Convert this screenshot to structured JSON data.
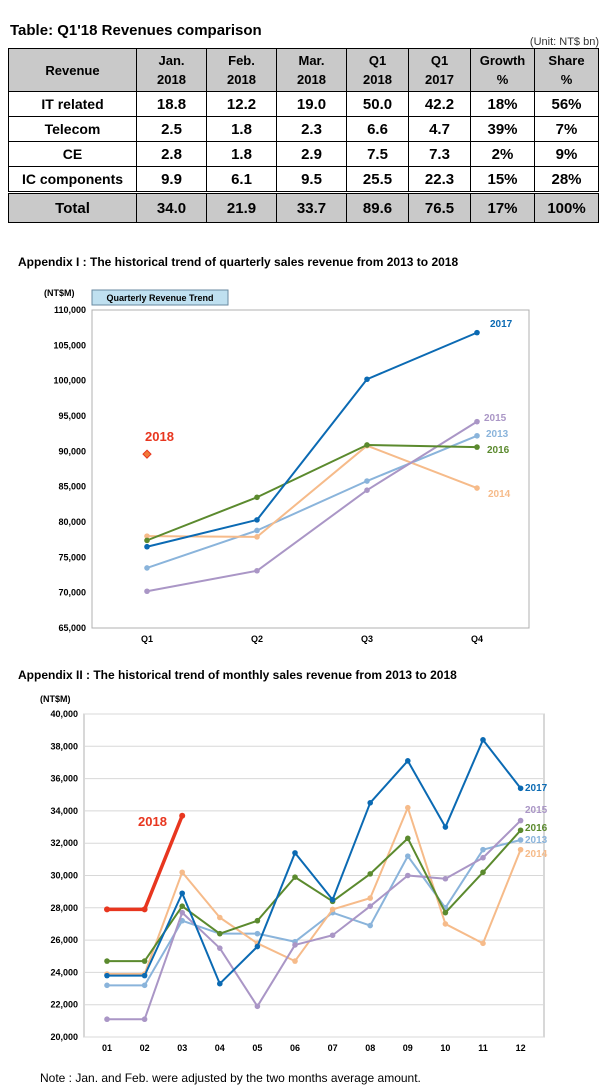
{
  "table": {
    "title": "Table: Q1'18 Revenues comparison",
    "unit": "(Unit: NT$ bn)",
    "headers": [
      [
        "Revenue",
        ""
      ],
      [
        "Jan.",
        "2018"
      ],
      [
        "Feb.",
        "2018"
      ],
      [
        "Mar.",
        "2018"
      ],
      [
        "Q1",
        "2018"
      ],
      [
        "Q1",
        "2017"
      ],
      [
        "Growth",
        "%"
      ],
      [
        "Share",
        "%"
      ]
    ],
    "rows": [
      {
        "label": "IT related",
        "cells": [
          "18.8",
          "12.2",
          "19.0",
          "50.0",
          "42.2",
          "18%",
          "56%"
        ]
      },
      {
        "label": "Telecom",
        "cells": [
          "2.5",
          "1.8",
          "2.3",
          "6.6",
          "4.7",
          "39%",
          "7%"
        ]
      },
      {
        "label": "CE",
        "cells": [
          "2.8",
          "1.8",
          "2.9",
          "7.5",
          "7.3",
          "2%",
          "9%"
        ]
      },
      {
        "label": "IC components",
        "cells": [
          "9.9",
          "6.1",
          "9.5",
          "25.5",
          "22.3",
          "15%",
          "28%"
        ]
      }
    ],
    "total": {
      "label": "Total",
      "cells": [
        "34.0",
        "21.9",
        "33.7",
        "89.6",
        "76.5",
        "17%",
        "100%"
      ]
    }
  },
  "appendix1": {
    "title": "Appendix I : The historical trend of quarterly sales revenue from 2013 to 2018"
  },
  "appendix2": {
    "title": "Appendix II : The historical trend of monthly sales revenue from 2013 to 2018"
  },
  "note": "Note : Jan. and Feb. were adjusted by the two months average amount.",
  "chart_data": [
    {
      "type": "line",
      "title": "Quarterly Revenue Trend",
      "ylabel": "(NT$M)",
      "categories": [
        "Q1",
        "Q2",
        "Q3",
        "Q4"
      ],
      "ylim": [
        65000,
        110000
      ],
      "yticks": [
        "65,000",
        "70,000",
        "75,000",
        "80,000",
        "85,000",
        "90,000",
        "95,000",
        "100,000",
        "105,000",
        "110,000"
      ],
      "legend": "inline-right",
      "series": [
        {
          "name": "2013",
          "color": "#8ab4db",
          "values": [
            73500,
            78800,
            85800,
            92200
          ]
        },
        {
          "name": "2014",
          "color": "#f6bb8a",
          "values": [
            78000,
            77900,
            90800,
            84800
          ]
        },
        {
          "name": "2015",
          "color": "#aa96c6",
          "values": [
            70200,
            73100,
            84500,
            94200
          ]
        },
        {
          "name": "2016",
          "color": "#5b8a2e",
          "values": [
            77400,
            83500,
            90900,
            90600
          ]
        },
        {
          "name": "2017",
          "color": "#0b6ab3",
          "values": [
            76500,
            80300,
            100200,
            106800
          ]
        },
        {
          "name": "2018",
          "color": "#e8361f",
          "values": [
            89600,
            null,
            null,
            null
          ]
        }
      ]
    },
    {
      "type": "line",
      "title": "",
      "ylabel": "(NT$M)",
      "categories": [
        "01",
        "02",
        "03",
        "04",
        "05",
        "06",
        "07",
        "08",
        "09",
        "10",
        "11",
        "12"
      ],
      "ylim": [
        20000,
        40000
      ],
      "yticks": [
        "20,000",
        "22,000",
        "24,000",
        "26,000",
        "28,000",
        "30,000",
        "32,000",
        "34,000",
        "36,000",
        "38,000",
        "40,000"
      ],
      "legend": "inline-right",
      "series": [
        {
          "name": "2013",
          "color": "#8ab4db",
          "values": [
            23200,
            23200,
            27200,
            26400,
            26400,
            25900,
            27700,
            26900,
            31200,
            28000,
            31600,
            32200
          ]
        },
        {
          "name": "2014",
          "color": "#f6bb8a",
          "values": [
            23900,
            23900,
            30200,
            27400,
            25800,
            24700,
            27900,
            28600,
            34200,
            27000,
            25800,
            31600
          ]
        },
        {
          "name": "2015",
          "color": "#aa96c6",
          "values": [
            21100,
            21100,
            27700,
            25500,
            21900,
            25700,
            26300,
            28100,
            30000,
            29800,
            31100,
            33400
          ]
        },
        {
          "name": "2016",
          "color": "#5b8a2e",
          "values": [
            24700,
            24700,
            28100,
            26400,
            27200,
            29900,
            28400,
            30100,
            32300,
            27700,
            30200,
            32800
          ]
        },
        {
          "name": "2017",
          "color": "#0b6ab3",
          "values": [
            23800,
            23800,
            28900,
            23300,
            25600,
            31400,
            28500,
            34500,
            37100,
            33000,
            38400,
            35400
          ]
        },
        {
          "name": "2018",
          "color": "#e8361f",
          "values": [
            27900,
            27900,
            33700,
            null,
            null,
            null,
            null,
            null,
            null,
            null,
            null,
            null
          ]
        }
      ]
    }
  ]
}
